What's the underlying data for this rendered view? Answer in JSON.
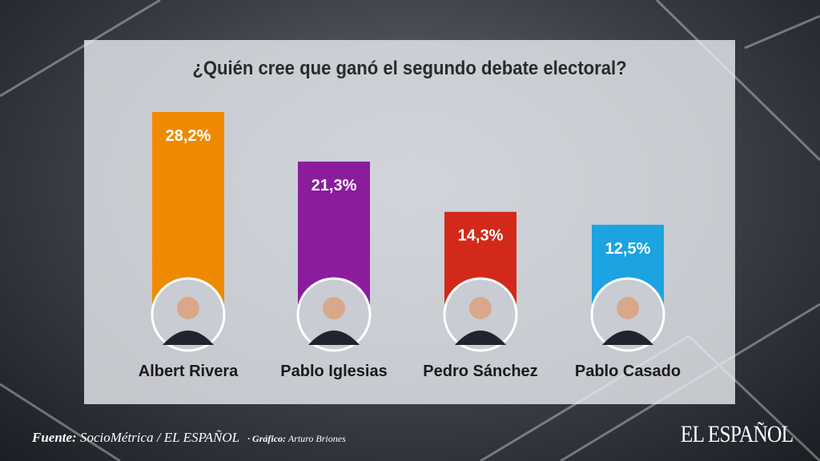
{
  "chart_data": {
    "type": "bar",
    "title": "¿Quién cree que ganó el segundo debate electoral?",
    "categories": [
      "Albert Rivera",
      "Pablo Iglesias",
      "Pedro Sánchez",
      "Pablo Casado"
    ],
    "values": [
      28.2,
      21.3,
      14.3,
      12.5
    ],
    "value_labels": [
      "28,2%",
      "21,3%",
      "14,3%",
      "12,5%"
    ],
    "colors": [
      "#ef8a00",
      "#8b1c9c",
      "#d2291a",
      "#1ba3e2"
    ],
    "ylim": [
      0,
      28.2
    ],
    "grid": false,
    "legend": "none"
  },
  "footer": {
    "source_label": "Fuente:",
    "source": "SocioMétrica / EL ESPAÑOL",
    "credit_label": "· Gráfico:",
    "credit": "Arturo Briones"
  },
  "brand": "EL ESPAÑOL"
}
